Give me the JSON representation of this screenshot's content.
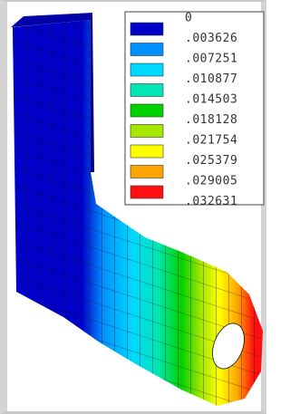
{
  "legend": {
    "items": [
      {
        "label": "0",
        "color": "#0000c8"
      },
      {
        "label": ".003626",
        "color": "#0090ff"
      },
      {
        "label": ".007251",
        "color": "#00d8ff"
      },
      {
        "label": ".010877",
        "color": "#00e6b4"
      },
      {
        "label": ".014503",
        "color": "#00d200"
      },
      {
        "label": ".018128",
        "color": "#a6e600"
      },
      {
        "label": ".021754",
        "color": "#ffff00"
      },
      {
        "label": ".025379",
        "color": "#ffa500"
      },
      {
        "label": ".029005",
        "color": "#ff1010"
      },
      {
        "label": ".032631",
        "color": null
      }
    ]
  }
}
